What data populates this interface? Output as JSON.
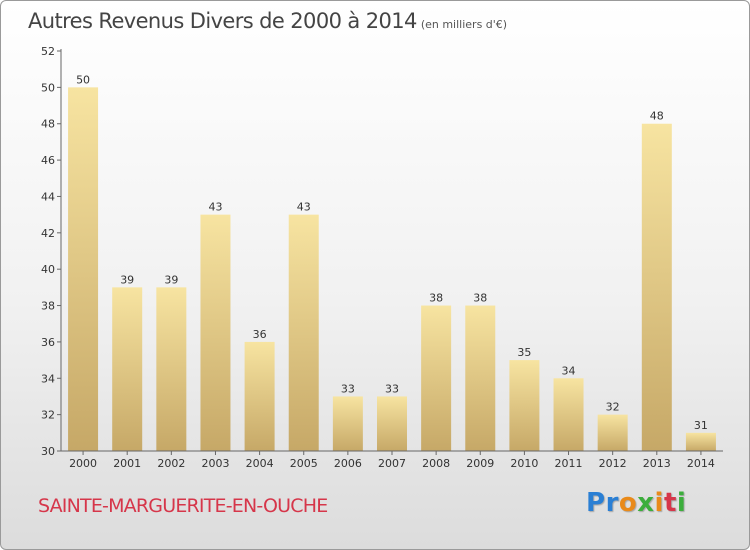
{
  "chart_data": {
    "type": "bar",
    "title": "Autres Revenus Divers de 2000 à 2014",
    "subtitle": "(en milliers d'€)",
    "categories": [
      "2000",
      "2001",
      "2002",
      "2003",
      "2004",
      "2005",
      "2006",
      "2007",
      "2008",
      "2009",
      "2010",
      "2011",
      "2012",
      "2013",
      "2014"
    ],
    "values": [
      50,
      39,
      39,
      43,
      36,
      43,
      33,
      33,
      38,
      38,
      35,
      34,
      32,
      48,
      31
    ],
    "xlabel": "",
    "ylabel": "",
    "ylim": [
      30,
      52
    ],
    "yticks": [
      30,
      32,
      34,
      36,
      38,
      40,
      42,
      44,
      46,
      48,
      50,
      52
    ],
    "grid": false,
    "legend": "none",
    "bar_color_light": "#f7e4a1",
    "bar_color_dark": "#c6a867"
  },
  "footer": {
    "commune": "SAINTE-MARGUERITE-EN-OUCHE",
    "commune_color": "#d6364a",
    "brand_letters": [
      {
        "ch": "P",
        "color": "#2a7fd4"
      },
      {
        "ch": "r",
        "color": "#2a7fd4"
      },
      {
        "ch": "o",
        "color": "#e98a1a"
      },
      {
        "ch": "x",
        "color": "#3cae3c"
      },
      {
        "ch": "i",
        "color": "#e98a1a"
      },
      {
        "ch": "t",
        "color": "#d6364a"
      },
      {
        "ch": "i",
        "color": "#3cae3c"
      }
    ]
  }
}
